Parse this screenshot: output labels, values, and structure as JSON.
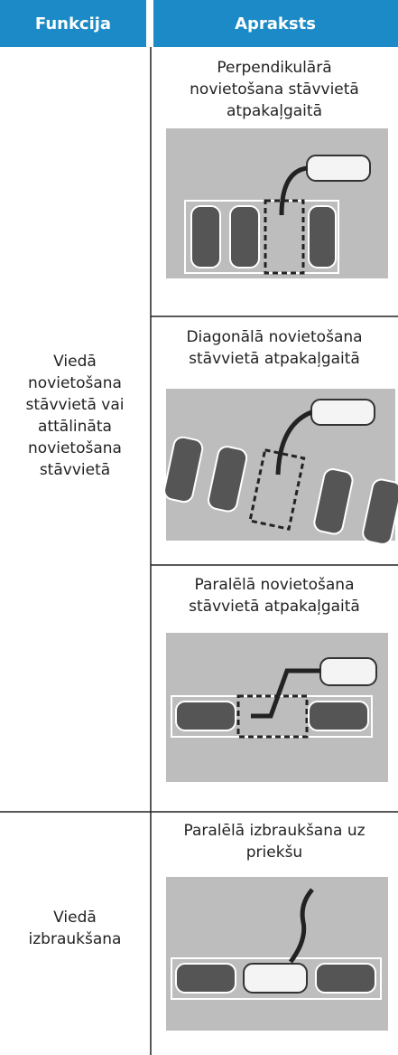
{
  "header": {
    "columns": [
      "Funkcija",
      "Apraksts"
    ]
  },
  "rows": [
    {
      "function": [
        "Viedā",
        "novietošana",
        "stāvvietā vai",
        "attālināta",
        "novietošana",
        "stāvvietā"
      ],
      "descriptions": [
        [
          "Perpendikulārā",
          "novietošana stāvvietā",
          "atpakaļgaitā"
        ],
        [
          "Diagonālā novietošana",
          "stāvvietā atpakaļgaitā"
        ],
        [
          "Paralēlā novietošana",
          "stāvvietā atpakaļgaitā"
        ]
      ]
    },
    {
      "function": [
        "Viedā",
        "izbraukšana"
      ],
      "descriptions": [
        [
          "Paralēlā izbraukšana uz",
          "priekšu"
        ]
      ]
    }
  ]
}
